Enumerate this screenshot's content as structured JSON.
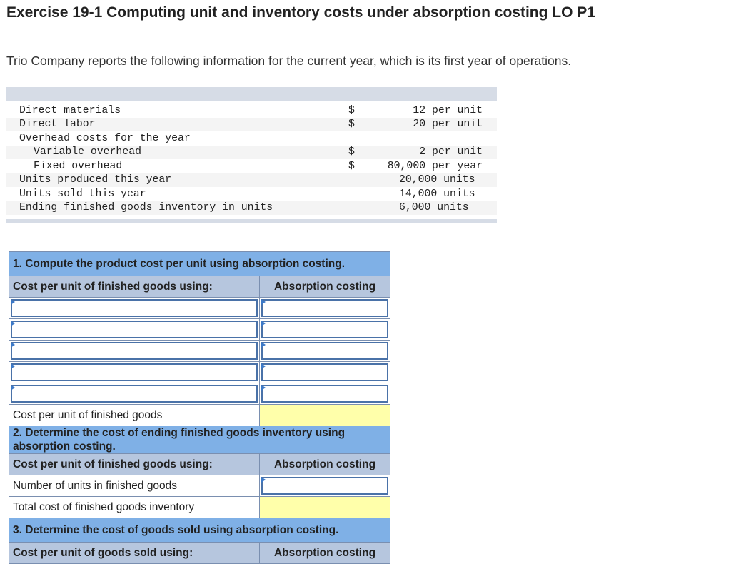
{
  "header": {
    "title": "Exercise 19-1 Computing unit and inventory costs under absorption costing LO P1",
    "intro": "Trio Company reports the following information for the current year, which is its first year of operations."
  },
  "info_rows": [
    {
      "label": "Direct materials",
      "currency": "$",
      "value": "12 per unit"
    },
    {
      "label": "Direct labor",
      "currency": "$",
      "value": "20 per unit"
    },
    {
      "label": "Overhead costs for the year",
      "currency": "",
      "value": ""
    },
    {
      "label": "Variable overhead",
      "currency": "$",
      "value": "2 per unit"
    },
    {
      "label": "Fixed overhead",
      "currency": "$",
      "value": "80,000 per year"
    },
    {
      "label": "Units produced this year",
      "currency": "",
      "value": "20,000 units"
    },
    {
      "label": "Units sold this year",
      "currency": "",
      "value": "14,000 units"
    },
    {
      "label": "Ending finished goods inventory in units",
      "currency": "",
      "value": "6,000 units"
    }
  ],
  "part1": {
    "heading": "1. Compute the product cost per unit using absorption costing.",
    "col_left": "Cost per unit of finished goods using:",
    "col_right": "Absorption costing",
    "total_label": "Cost per unit of finished goods"
  },
  "part2": {
    "heading": "2. Determine the cost of ending finished goods inventory using absorption costing.",
    "col_left": "Cost per unit of finished goods using:",
    "col_right": "Absorption costing",
    "row1_label": "Number of units in finished goods",
    "row2_label": "Total cost of finished goods inventory"
  },
  "part3": {
    "heading": "3. Determine the cost of goods sold using absorption costing.",
    "col_left": "Cost per unit of goods sold using:",
    "col_right": "Absorption costing"
  }
}
